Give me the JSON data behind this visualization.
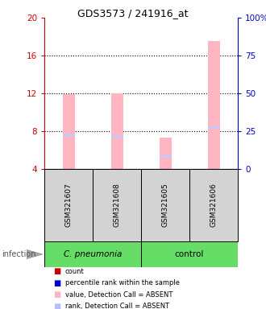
{
  "title": "GDS3573 / 241916_at",
  "samples": [
    "GSM321607",
    "GSM321608",
    "GSM321605",
    "GSM321606"
  ],
  "value_absent": [
    11.9,
    12.0,
    7.35,
    17.5
  ],
  "rank_absent": [
    22.0,
    21.5,
    8.0,
    27.5
  ],
  "ylim_left": [
    4,
    20
  ],
  "ylim_right": [
    0,
    100
  ],
  "yticks_left": [
    4,
    8,
    12,
    16,
    20
  ],
  "yticks_right": [
    0,
    25,
    50,
    75,
    100
  ],
  "ytick_labels_right": [
    "0",
    "25",
    "50",
    "75",
    "100%"
  ],
  "left_axis_color": "#CC0000",
  "right_axis_color": "#0000CC",
  "bg_color": "#D3D3D3",
  "cpneumonia_color": "#66DD66",
  "control_color": "#66DD66",
  "bar_color_absent": "#FFB6C1",
  "rank_color_absent": "#C8C8FF",
  "bar_width": 0.25,
  "legend_colors": [
    "#CC0000",
    "#0000CC",
    "#FFB6C1",
    "#BBBBFF"
  ],
  "legend_labels": [
    "count",
    "percentile rank within the sample",
    "value, Detection Call = ABSENT",
    "rank, Detection Call = ABSENT"
  ]
}
